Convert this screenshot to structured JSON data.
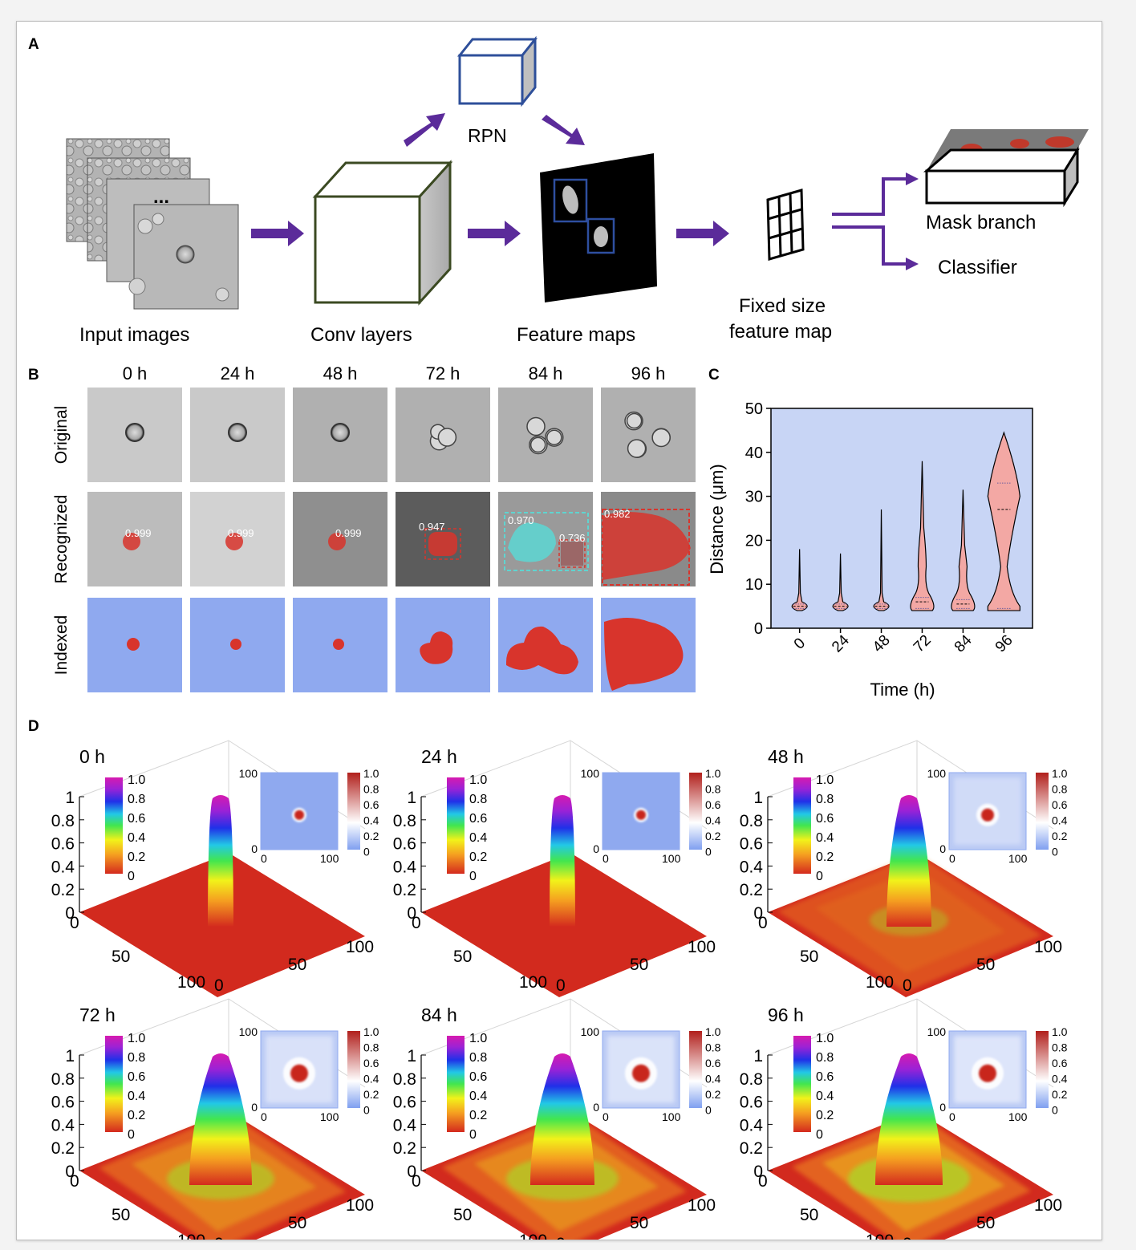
{
  "panels": {
    "a": "A",
    "b": "B",
    "c": "C",
    "d": "D"
  },
  "pipeline": {
    "input_label": "Input images",
    "dots": "...",
    "conv_label": "Conv layers",
    "rpn_label": "RPN",
    "feature_label": "Feature maps",
    "fixed_line1": "Fixed size",
    "fixed_line2": "feature map",
    "mask_label": "Mask branch",
    "classifier_label": "Classifier",
    "arrow_color": "#5b2b9a"
  },
  "panel_b": {
    "times": [
      "0 h",
      "24 h",
      "48 h",
      "72 h",
      "84 h",
      "96 h"
    ],
    "row_labels": [
      "Original",
      "Recognized",
      "Indexed"
    ],
    "scores": [
      [
        "0.999"
      ],
      [
        "0.999"
      ],
      [
        "0.999"
      ],
      [
        "0.947"
      ],
      [
        "0.970",
        "0.736"
      ],
      [
        "0.982"
      ]
    ],
    "mask_color": "#d8342c",
    "index_bg": "#8fa9ef"
  },
  "chart_data": {
    "type": "violin",
    "xlabel": "Time (h)",
    "ylabel": "Distance (μm)",
    "categories": [
      "0",
      "24",
      "48",
      "72",
      "84",
      "96"
    ],
    "ylim": [
      0,
      50
    ],
    "yticks": [
      0,
      10,
      20,
      30,
      40,
      50
    ],
    "max": [
      18,
      17,
      27,
      38,
      31.5,
      44.5
    ],
    "median": [
      5,
      5,
      5,
      6,
      5.5,
      27
    ],
    "quartiles": [
      [
        4.5,
        5.5
      ],
      [
        4.5,
        5.5
      ],
      [
        4.5,
        5.5
      ],
      [
        4.5,
        7
      ],
      [
        4.5,
        6.5
      ],
      [
        4.5,
        33
      ]
    ],
    "fill_color": "#f3a8a4",
    "background": "#c8d5f5"
  },
  "panel_d": {
    "plots": [
      {
        "time": "0 h",
        "spread": 0.0
      },
      {
        "time": "24 h",
        "spread": 0.0
      },
      {
        "time": "48 h",
        "spread": 0.15
      },
      {
        "time": "72 h",
        "spread": 0.45
      },
      {
        "time": "84 h",
        "spread": 0.5
      },
      {
        "time": "96 h",
        "spread": 0.6
      }
    ],
    "z_ticks": [
      "1",
      "0.8",
      "0.6",
      "0.4",
      "0.2",
      "0"
    ],
    "colorbar_ticks": [
      "1.0",
      "0.8",
      "0.6",
      "0.4",
      "0.2",
      "0"
    ],
    "axis_ticks": {
      "zero": "0",
      "fifty": "50",
      "hundred": "100"
    }
  }
}
